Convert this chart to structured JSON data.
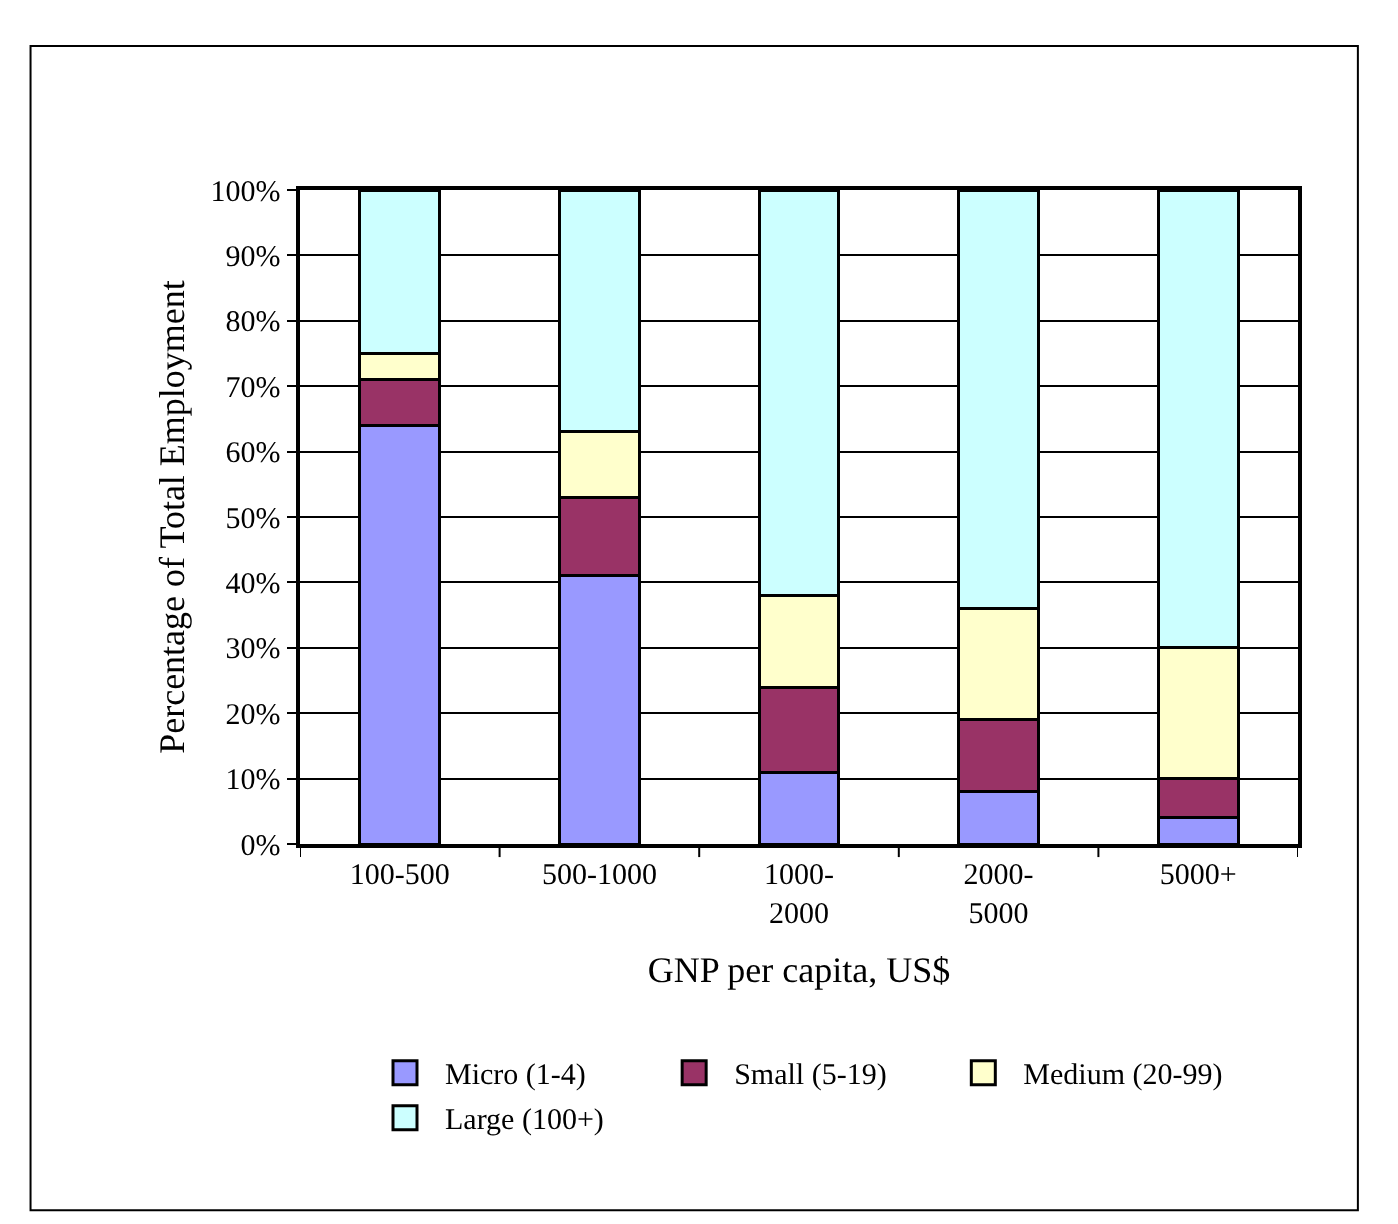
{
  "chart_data": {
    "type": "bar",
    "stacked": true,
    "xlabel": "GNP per capita, US$",
    "ylabel": "Percentage of Total Employment",
    "categories": [
      "100-500",
      "500-1000",
      "1000-\n2000",
      "2000-\n5000",
      "5000+"
    ],
    "series": [
      {
        "name": "Micro (1-4)",
        "color": "#9999ff",
        "values": [
          64,
          41,
          11,
          8,
          4
        ]
      },
      {
        "name": "Small (5-19)",
        "color": "#993366",
        "values": [
          7,
          12,
          13,
          11,
          6
        ]
      },
      {
        "name": "Medium (20-99)",
        "color": "#ffffcc",
        "values": [
          4,
          10,
          14,
          17,
          20
        ]
      },
      {
        "name": "Large (100+)",
        "color": "#ccffff",
        "values": [
          25,
          37,
          62,
          64,
          70
        ]
      }
    ],
    "ylim": [
      0,
      100
    ],
    "yticks": [
      {
        "value": 0,
        "label": "0%"
      },
      {
        "value": 10,
        "label": "10%"
      },
      {
        "value": 20,
        "label": "20%"
      },
      {
        "value": 30,
        "label": "30%"
      },
      {
        "value": 40,
        "label": "40%"
      },
      {
        "value": 50,
        "label": "50%"
      },
      {
        "value": 60,
        "label": "60%"
      },
      {
        "value": 70,
        "label": "70%"
      },
      {
        "value": 80,
        "label": "80%"
      },
      {
        "value": 90,
        "label": "90%"
      },
      {
        "value": 100,
        "label": "100%"
      }
    ],
    "grid": "y",
    "legend": "bottom"
  }
}
